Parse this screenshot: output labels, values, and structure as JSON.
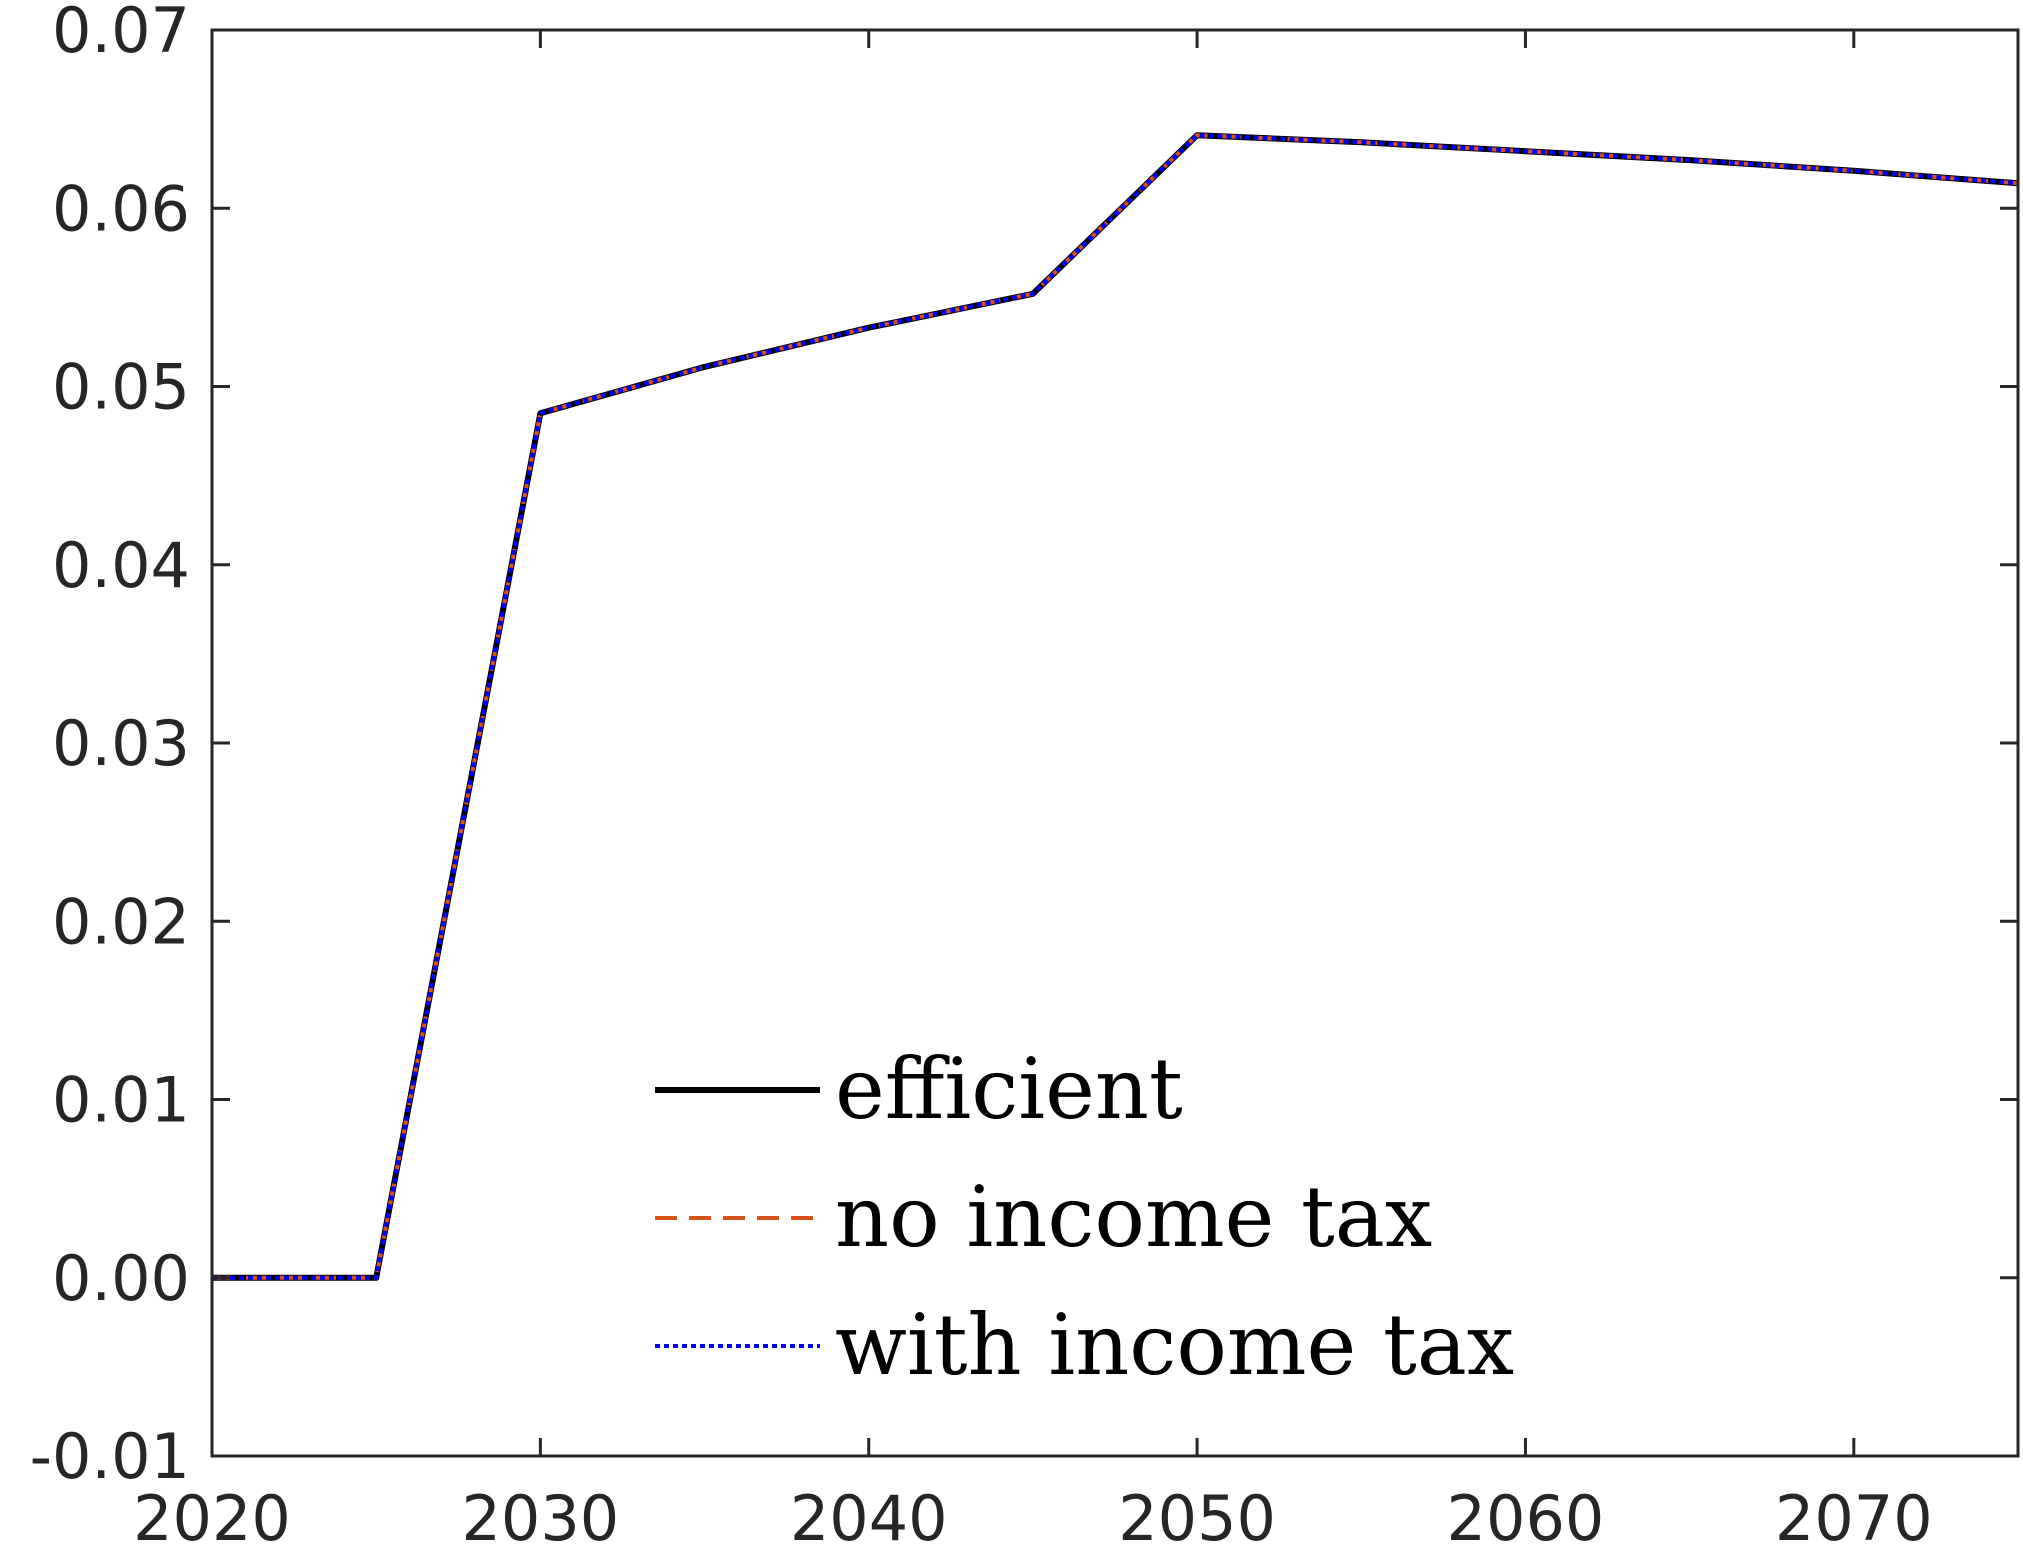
{
  "chart_data": {
    "type": "line",
    "title": "",
    "xlabel": "",
    "ylabel": "",
    "xlim": [
      2020,
      2075
    ],
    "ylim": [
      -0.01,
      0.07
    ],
    "xticks": [
      "2020",
      "2030",
      "2040",
      "2050",
      "2060",
      "2070"
    ],
    "yticks": [
      "-0.01",
      "0.00",
      "0.01",
      "0.02",
      "0.03",
      "0.04",
      "0.05",
      "0.06",
      "0.07"
    ],
    "grid": false,
    "legend_position": "bottom-center",
    "x": [
      2020,
      2025,
      2030,
      2035,
      2040,
      2045,
      2050,
      2055,
      2060,
      2065,
      2070,
      2075
    ],
    "series": [
      {
        "name": "efficient",
        "color": "#000000",
        "style": "solid",
        "values": [
          0.0,
          0.0,
          0.0485,
          0.0511,
          0.0533,
          0.0552,
          0.0641,
          0.0637,
          0.0632,
          0.0627,
          0.0621,
          0.0614
        ]
      },
      {
        "name": "no income tax",
        "color": "#d95319",
        "style": "dashed",
        "values": [
          0.0,
          0.0,
          0.0485,
          0.0511,
          0.0533,
          0.0552,
          0.0641,
          0.0637,
          0.0632,
          0.0627,
          0.0621,
          0.0614
        ]
      },
      {
        "name": "with income tax",
        "color": "#0000ff",
        "style": "dotted",
        "values": [
          0.0,
          0.0,
          0.0485,
          0.0511,
          0.0533,
          0.0552,
          0.0641,
          0.0637,
          0.0632,
          0.0627,
          0.0621,
          0.0614
        ]
      }
    ]
  }
}
